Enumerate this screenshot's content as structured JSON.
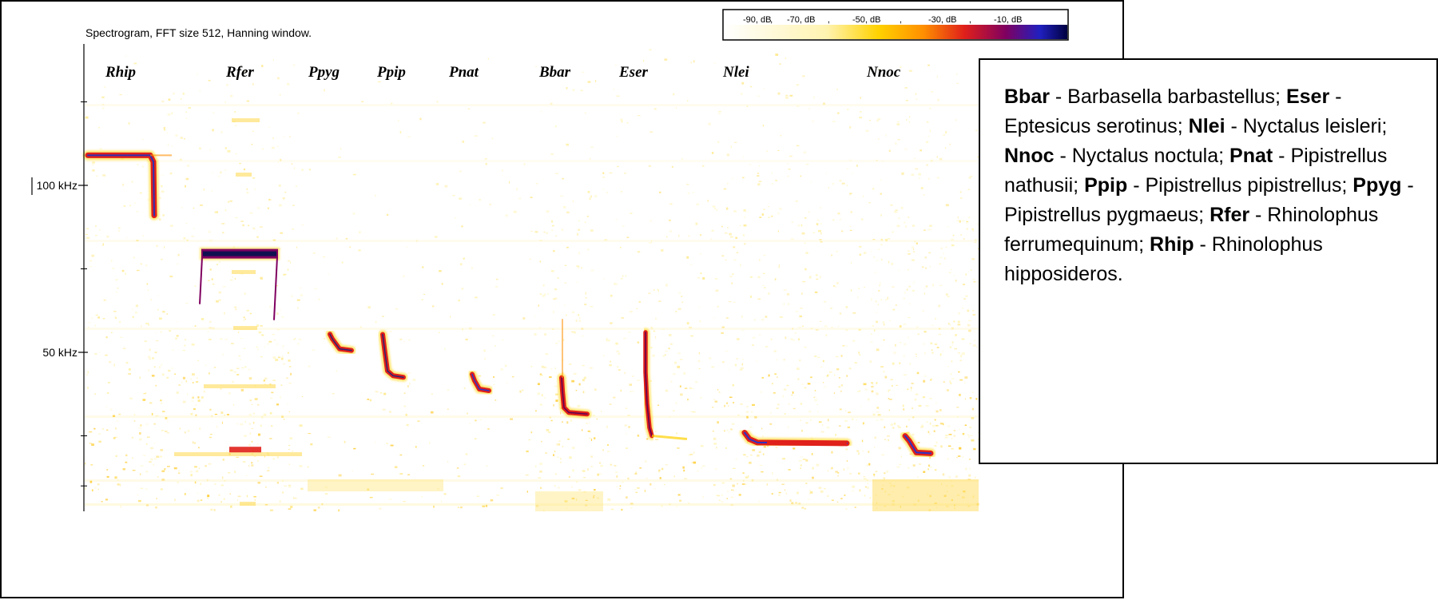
{
  "title": "Spectrogram, FFT size 512, Hanning window.",
  "colorbar": {
    "labels": [
      "-90, dB",
      "-70, dB",
      "-50, dB",
      "-30, dB",
      "-10, dB"
    ],
    "colors": [
      "#ffffff",
      "#fff3b0",
      "#ffd200",
      "#ff9000",
      "#e0201a",
      "#800060",
      "#2020c0",
      "#000040"
    ]
  },
  "chart_data": {
    "type": "heatmap",
    "title": "Spectrogram, FFT size 512, Hanning window.",
    "y_axis": {
      "ticks": [
        {
          "value": 100,
          "label": "100 kHz"
        },
        {
          "value": 50,
          "label": "50 kHz"
        }
      ],
      "ylim": [
        5,
        140
      ]
    },
    "species_columns": [
      "Rhip",
      "Rfer",
      "Ppyg",
      "Ppip",
      "Pnat",
      "Bbar",
      "Eser",
      "Nlei",
      "Nnoc"
    ],
    "calls": [
      {
        "species": "Rhip",
        "shape": "constant-frequency",
        "start_khz": 109,
        "end_khz": 91
      },
      {
        "species": "Rfer",
        "shape": "constant-frequency",
        "start_khz": 80,
        "end_khz": 74
      },
      {
        "species": "Ppyg",
        "shape": "fm-qcf",
        "start_khz": 54,
        "end_khz": 52
      },
      {
        "species": "Ppip",
        "shape": "fm-qcf",
        "start_khz": 52,
        "end_khz": 43
      },
      {
        "species": "Pnat",
        "shape": "fm-qcf",
        "start_khz": 42,
        "end_khz": 39
      },
      {
        "species": "Bbar",
        "shape": "fm",
        "start_khz": 40,
        "end_khz": 32
      },
      {
        "species": "Eser",
        "shape": "fm",
        "start_khz": 56,
        "end_khz": 25
      },
      {
        "species": "Nlei",
        "shape": "fm-qcf",
        "start_khz": 25,
        "end_khz": 23
      },
      {
        "species": "Nnoc",
        "shape": "fm-qcf",
        "start_khz": 24,
        "end_khz": 20
      }
    ],
    "colorbar_db": [
      -90,
      -70,
      -50,
      -30,
      -10
    ]
  },
  "legend": [
    {
      "code": "Bbar",
      "name": " - Barbasella barbastellus;"
    },
    {
      "code": "Eser",
      "name": " - Eptesicus serotinus;"
    },
    {
      "code": "Nlei",
      "name": " - Nyctalus leisleri;"
    },
    {
      "code": "Nnoc",
      "name": " - Nyctalus noctula;"
    },
    {
      "code": "Pnat",
      "name": " - Pipistrellus nathusii;"
    },
    {
      "code": "Ppip",
      "name": " - Pipistrellus pipistrellus;"
    },
    {
      "code": "Ppyg",
      "name": " - Pipistrellus pygmaeus;"
    },
    {
      "code": "Rfer",
      "name": " - Rhinolophus ferrumequinum;"
    },
    {
      "code": "Rhip",
      "name": " - Rhinolophus hipposideros."
    }
  ]
}
